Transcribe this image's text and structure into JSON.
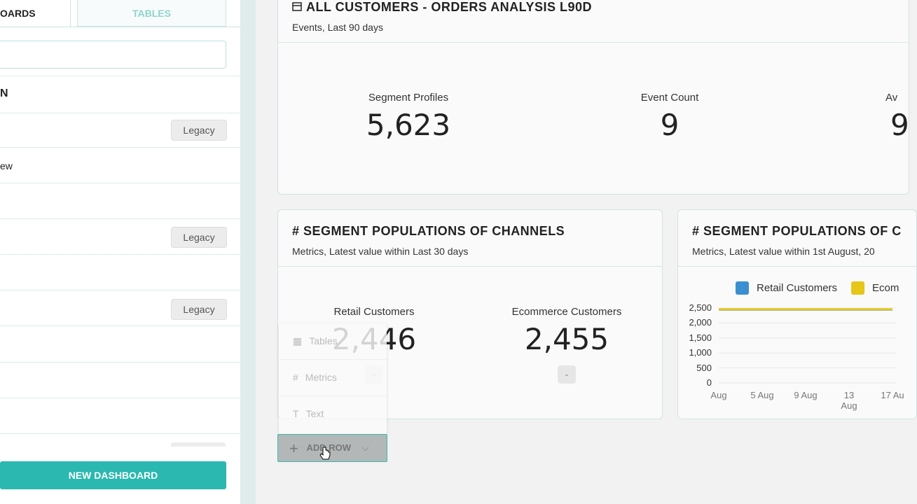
{
  "sidebar": {
    "tabs": [
      "OARDS",
      "TABLES"
    ],
    "section": "N",
    "partial_item": "ew",
    "legacy_buttons": [
      "Legacy",
      "Legacy",
      "Legacy"
    ],
    "new_dashboard": "NEW DASHBOARD"
  },
  "cards": [
    {
      "title": "ALL CUSTOMERS - ORDERS ANALYSIS L90D",
      "subtitle": "Events, Last 90 days",
      "metrics": [
        {
          "label": "Segment Profiles",
          "value": "5,623"
        },
        {
          "label": "Event Count",
          "value": "9"
        },
        {
          "label": "Av",
          "value": "9"
        }
      ]
    },
    {
      "title": "# SEGMENT POPULATIONS OF CHANNELS",
      "subtitle": "Metrics, Latest value within Last 30 days",
      "metrics": [
        {
          "label": "Retail Customers",
          "value": "2,446",
          "change": "-"
        },
        {
          "label": "Ecommerce Customers",
          "value": "2,455",
          "change": "-"
        }
      ]
    },
    {
      "title": "# SEGMENT POPULATIONS OF C",
      "subtitle": "Metrics, Latest value within 1st August, 20"
    }
  ],
  "chart_data": {
    "type": "line",
    "categories": [
      "Aug",
      "5 Aug",
      "9 Aug",
      "13 Aug",
      "17 Au"
    ],
    "series": [
      {
        "name": "Retail Customers",
        "color": "#3b8fd1",
        "values": [
          2446,
          2446,
          2446,
          2446,
          2446
        ]
      },
      {
        "name": "Ecom",
        "color": "#e6c619",
        "values": [
          2455,
          2455,
          2455,
          2455,
          2455
        ]
      }
    ],
    "ylim": [
      0,
      2500
    ],
    "yticks": [
      0,
      500,
      {
        "value": 1000,
        "label": "1,000"
      },
      {
        "value": 1500,
        "label": "1,500"
      },
      {
        "value": 2000,
        "label": "2,000"
      },
      {
        "value": 2500,
        "label": "2,500"
      }
    ],
    "grid": true
  },
  "menu": {
    "items": [
      "Tables",
      "Metrics",
      "Text"
    ],
    "add_row": "ADD ROW"
  }
}
